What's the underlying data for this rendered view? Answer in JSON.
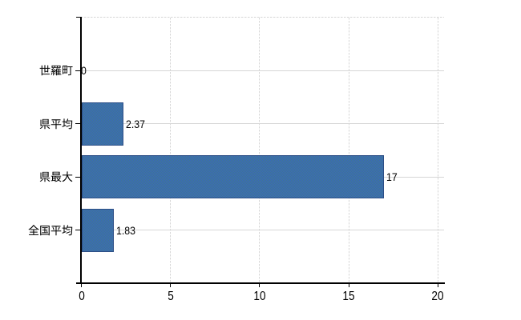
{
  "chart_data": {
    "type": "bar",
    "orientation": "horizontal",
    "title": "",
    "categories": [
      "世羅町",
      "県平均",
      "県最大",
      "全国平均"
    ],
    "values": [
      0,
      2.37,
      17,
      1.83
    ],
    "value_labels": [
      "0",
      "2.37",
      "17",
      "1.83"
    ],
    "xlim": [
      0,
      20
    ],
    "xticks": [
      0,
      5,
      10,
      15,
      20
    ],
    "xtick_labels": [
      "0",
      "5",
      "10",
      "15",
      "20"
    ],
    "xlabel": "",
    "ylabel": "",
    "legend": false,
    "grid": {
      "vertical_style": "dashed",
      "horizontal_style": "solid"
    },
    "colors": {
      "bar_fill": "#3c70a6",
      "bar_fill_dither": [
        "#3a63c4",
        "#3e7d8a"
      ],
      "bar_border": "#2c4e86",
      "axis": "#000000",
      "gridline": "#d6d6d6",
      "text": "#000000",
      "background": "#ffffff"
    }
  }
}
